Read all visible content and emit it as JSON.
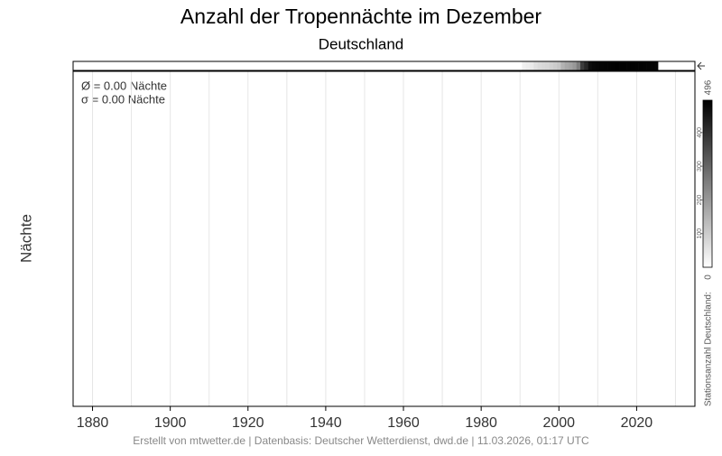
{
  "chart_data": {
    "type": "bar",
    "title": "Anzahl der Tropennächte im Dezember",
    "subtitle": "Deutschland",
    "ylabel": "Nächte",
    "stats": [
      "Ø = 0.00 Nächte",
      "σ = 0.00 Nächte"
    ],
    "xlim": [
      1875,
      2035
    ],
    "xticks": [
      1880,
      1900,
      1920,
      1940,
      1960,
      1980,
      2000,
      2020
    ],
    "xgrid": [
      1880,
      1890,
      1900,
      1910,
      1920,
      1930,
      1940,
      1950,
      1960,
      1970,
      1980,
      1990,
      2000,
      2010,
      2020,
      2030
    ],
    "station_counts": {
      "x": [
        1991,
        1992,
        1993,
        1994,
        1995,
        1996,
        1997,
        1998,
        1999,
        2000,
        2001,
        2002,
        2003,
        2004,
        2005,
        2006,
        2007,
        2008,
        2009,
        2010,
        2011,
        2012,
        2013,
        2014,
        2015,
        2016,
        2017,
        2018,
        2019,
        2020,
        2021,
        2022,
        2023,
        2024,
        2025
      ],
      "values": [
        30,
        35,
        40,
        60,
        70,
        75,
        80,
        90,
        100,
        110,
        150,
        170,
        180,
        200,
        250,
        380,
        420,
        470,
        480,
        485,
        488,
        490,
        492,
        494,
        496,
        496,
        496,
        495,
        494,
        493,
        492,
        490,
        488,
        486,
        484
      ]
    },
    "colorbar": {
      "label": "Stationsanzahl Deutschland:",
      "lim": [
        0,
        496
      ],
      "ticks": [
        100,
        200,
        300,
        400
      ]
    },
    "footer": "Erstellt von mtwetter.de | Datenbasis: Deutscher Wetterdienst, dwd.de | 11.03.2026, 01:17 UTC"
  }
}
